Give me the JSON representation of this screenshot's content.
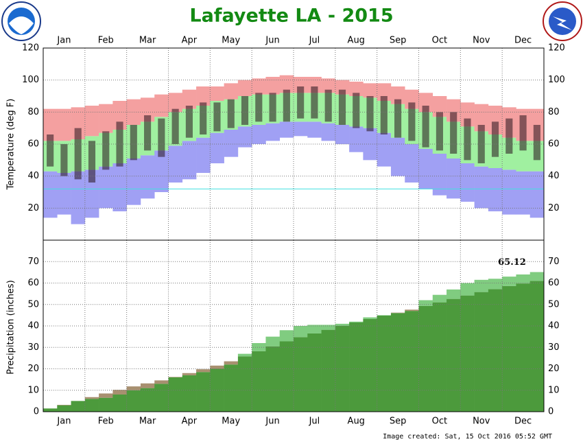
{
  "chart_data": [
    {
      "type": "temperature_bands",
      "title": "Lafayette LA - 2015",
      "ylabel": "Temperature (deg F)",
      "categories": [
        "Jan",
        "Feb",
        "Mar",
        "Apr",
        "May",
        "Jun",
        "Jul",
        "Aug",
        "Sep",
        "Oct",
        "Nov",
        "Dec"
      ],
      "ylim": [
        0,
        120
      ],
      "yticks": [
        20,
        40,
        60,
        80,
        100,
        120
      ],
      "grid": true,
      "freezing_line": 32,
      "freezing_color": "#40e0e0",
      "record_high": [
        82,
        82,
        83,
        84,
        85,
        87,
        88,
        89,
        91,
        92,
        94,
        96,
        96,
        98,
        100,
        101,
        102,
        103,
        102,
        102,
        101,
        100,
        99,
        98,
        98,
        96,
        94,
        92,
        90,
        88,
        86,
        85,
        84,
        83,
        82,
        82
      ],
      "normal_high": [
        62,
        62,
        63,
        65,
        67,
        69,
        72,
        74,
        77,
        80,
        82,
        84,
        87,
        88,
        90,
        91,
        91,
        92,
        92,
        92,
        92,
        91,
        90,
        89,
        87,
        85,
        82,
        80,
        77,
        74,
        71,
        68,
        66,
        64,
        62,
        62
      ],
      "normal_low": [
        43,
        42,
        43,
        44,
        46,
        48,
        51,
        53,
        56,
        59,
        62,
        64,
        67,
        69,
        71,
        72,
        73,
        74,
        74,
        74,
        73,
        72,
        71,
        70,
        67,
        64,
        60,
        57,
        54,
        51,
        48,
        46,
        45,
        44,
        43,
        43
      ],
      "record_low": [
        14,
        16,
        10,
        14,
        20,
        18,
        22,
        26,
        30,
        36,
        38,
        42,
        48,
        52,
        58,
        60,
        62,
        64,
        65,
        64,
        62,
        60,
        55,
        50,
        46,
        40,
        36,
        32,
        28,
        26,
        24,
        20,
        18,
        16,
        16,
        14
      ],
      "actual_high": [
        66,
        60,
        70,
        62,
        68,
        74,
        72,
        78,
        76,
        82,
        84,
        86,
        86,
        88,
        90,
        92,
        92,
        94,
        96,
        96,
        94,
        94,
        92,
        90,
        90,
        88,
        86,
        84,
        80,
        80,
        76,
        72,
        74,
        76,
        78,
        72
      ],
      "actual_low": [
        46,
        40,
        38,
        36,
        44,
        46,
        50,
        56,
        52,
        60,
        64,
        66,
        68,
        70,
        72,
        74,
        74,
        74,
        76,
        76,
        74,
        72,
        70,
        68,
        66,
        64,
        62,
        58,
        56,
        54,
        50,
        48,
        52,
        54,
        56,
        50
      ],
      "colors": {
        "record_high": "#f4a0a0",
        "normal": "#a0f0a0",
        "record_low": "#a0a0f4",
        "actual": "rgba(40,20,30,0.55)"
      }
    },
    {
      "type": "cumulative_precip",
      "ylabel": "Precipitation (inches)",
      "categories": [
        "Jan",
        "Feb",
        "Mar",
        "Apr",
        "May",
        "Jun",
        "Jul",
        "Aug",
        "Sep",
        "Oct",
        "Nov",
        "Dec"
      ],
      "ylim": [
        0,
        80
      ],
      "yticks": [
        0,
        10,
        20,
        30,
        40,
        50,
        60,
        70
      ],
      "grid": true,
      "actual": [
        1.5,
        3.0,
        5.0,
        6.0,
        6.5,
        8.0,
        10.0,
        11.0,
        13.0,
        16.0,
        17.0,
        18.5,
        20.0,
        22.0,
        27.0,
        32.0,
        35.0,
        38.0,
        40.0,
        40.5,
        40.5,
        41.0,
        42.0,
        44.0,
        45.0,
        46.0,
        47.0,
        52.0,
        54.5,
        57.0,
        60.0,
        61.5,
        62.0,
        63.0,
        64.0,
        65.12
      ],
      "normal": [
        1.5,
        3.2,
        5,
        6.8,
        8.5,
        10.2,
        11.8,
        13.2,
        14.6,
        16.2,
        18,
        19.8,
        21.5,
        23.5,
        25.8,
        28.2,
        30.5,
        32.8,
        34.8,
        36.5,
        38.2,
        40,
        41.6,
        43.2,
        44.8,
        46.2,
        47.6,
        49.3,
        51,
        52.6,
        54.2,
        55.8,
        57.2,
        58.6,
        59.8,
        61.0
      ],
      "colors": {
        "above": "#80cc80",
        "normal": "#4c9a3c",
        "below": "#a89070"
      }
    }
  ],
  "footer": "Image created: Sat, 15 Oct 2016 05:52 GMT"
}
